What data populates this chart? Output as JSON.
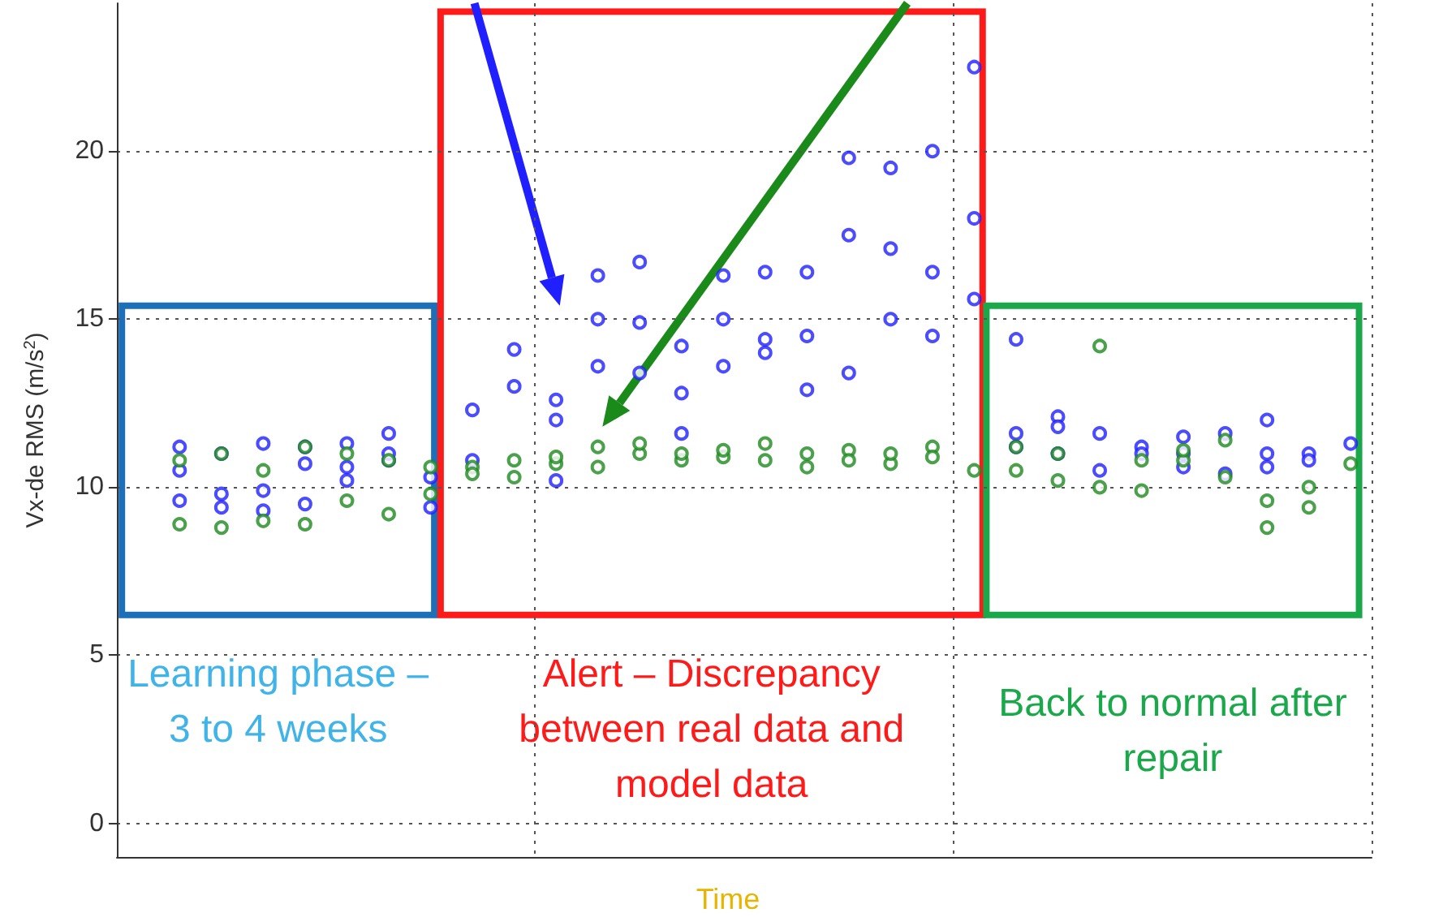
{
  "chart_data": {
    "type": "scatter",
    "xlabel": "Time",
    "ylabel": "Vx-de RMS (m/s$^{2}$)",
    "annotations": [
      "Learning phase – 3 to 4 weeks",
      "Alert – Discrepancy between real data and model data",
      "Back to normal after repair"
    ],
    "categories": [
      null,
      null,
      null,
      null,
      null,
      null,
      null,
      null,
      null,
      null,
      null,
      null,
      null,
      null,
      null,
      null,
      null,
      null,
      null,
      null,
      null,
      null,
      null,
      null,
      null,
      null,
      null,
      null,
      null,
      null
    ],
    "ylim": [
      -1,
      24.4
    ],
    "yticks": [
      0,
      5,
      10,
      15,
      20
    ],
    "tick_labels": "y",
    "grid": true,
    "marker": "circle",
    "series": [
      {
        "color": "#1f1fff",
        "values": [
          null,
          11.2,
          11.0,
          11.3,
          11.2,
          10.6,
          11.6,
          10.3,
          10.8,
          14.1,
          12.6,
          16.3,
          16.7,
          12.8,
          16.3,
          16.4,
          16.4,
          19.8,
          19.5,
          20.0,
          22.5,
          14.4,
          12.1,
          11.6,
          11.2,
          11.5,
          11.6,
          12.0,
          11.0,
          11.3
        ]
      },
      {
        "color": "#1f1fff",
        "values": [
          null,
          9.6,
          9.8,
          9.3,
          9.5,
          11.3,
          10.8,
          9.4,
          12.3,
          13.0,
          12.0,
          15.0,
          14.9,
          11.6,
          15.0,
          14.0,
          12.9,
          17.5,
          17.1,
          16.4,
          18.0,
          11.6,
          11.8,
          10.5,
          11.0,
          11.0,
          10.4,
          10.6,
          10.8,
          null
        ]
      },
      {
        "color": "#1f1fff",
        "values": [
          null,
          10.5,
          9.4,
          9.9,
          10.7,
          10.2,
          11.0,
          null,
          null,
          null,
          10.2,
          13.6,
          13.4,
          14.2,
          13.6,
          14.4,
          14.5,
          13.4,
          15.0,
          14.5,
          15.6,
          11.2,
          11.0,
          null,
          null,
          10.6,
          null,
          11.0,
          null,
          null
        ]
      },
      {
        "color": "#1e8a1e",
        "values": [
          null,
          10.8,
          11.0,
          10.5,
          11.2,
          11.0,
          10.8,
          10.6,
          10.6,
          10.8,
          10.7,
          11.2,
          11.0,
          10.8,
          10.9,
          10.8,
          10.6,
          11.1,
          10.7,
          11.2,
          10.5,
          11.2,
          11.0,
          14.2,
          10.8,
          10.8,
          10.3,
          8.8,
          10.0,
          10.7
        ]
      },
      {
        "color": "#1e8a1e",
        "values": [
          null,
          8.9,
          8.8,
          9.0,
          8.9,
          9.6,
          9.2,
          9.8,
          10.4,
          10.3,
          10.9,
          10.6,
          11.3,
          11.0,
          11.1,
          11.3,
          11.0,
          10.8,
          11.0,
          10.9,
          null,
          10.5,
          10.2,
          10.0,
          9.9,
          11.1,
          11.4,
          9.6,
          9.4,
          null
        ]
      }
    ]
  }
}
